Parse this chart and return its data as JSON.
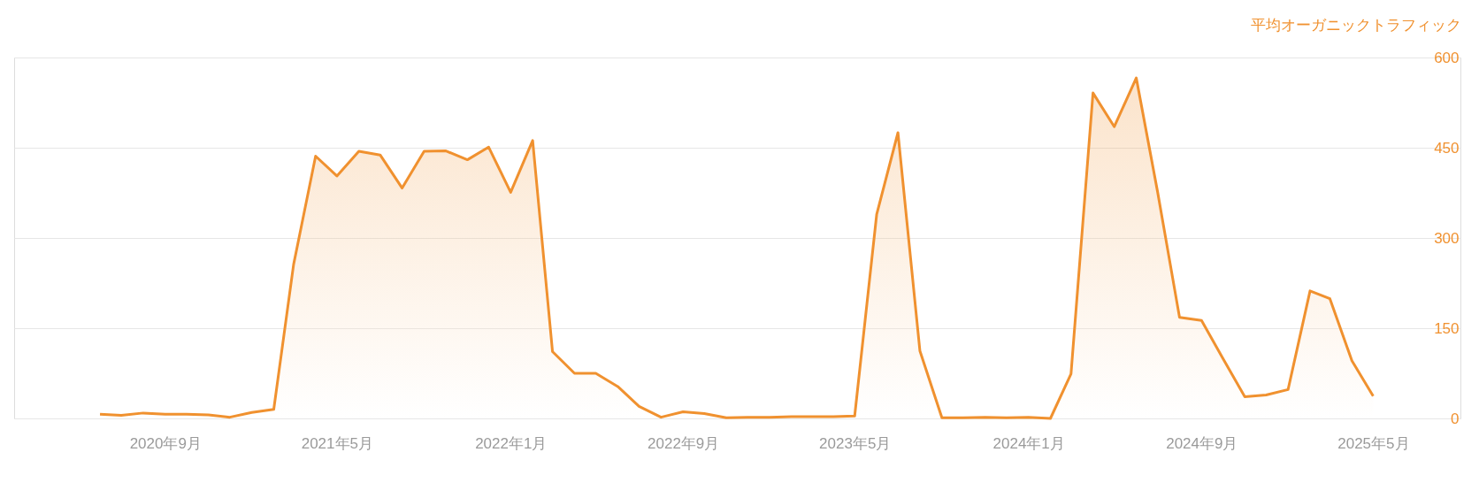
{
  "chart_data": {
    "type": "area",
    "ylabel": "平均オーガニックトラフィック",
    "x": [
      "2020-06",
      "2020-07",
      "2020-08",
      "2020-09",
      "2020-10",
      "2020-11",
      "2020-12",
      "2021-01",
      "2021-02",
      "2021-03",
      "2021-04",
      "2021-05",
      "2021-06",
      "2021-07",
      "2021-08",
      "2021-09",
      "2021-10",
      "2021-11",
      "2021-12",
      "2022-01",
      "2022-02",
      "2022-03",
      "2022-04",
      "2022-05",
      "2022-06",
      "2022-07",
      "2022-08",
      "2022-09",
      "2022-10",
      "2022-11",
      "2022-12",
      "2023-01",
      "2023-02",
      "2023-03",
      "2023-04",
      "2023-05",
      "2023-06",
      "2023-07",
      "2023-08",
      "2023-09",
      "2023-10",
      "2023-11",
      "2023-12",
      "2024-01",
      "2024-02",
      "2024-03",
      "2024-04",
      "2024-05",
      "2024-06",
      "2024-07",
      "2024-08",
      "2024-09",
      "2024-10",
      "2024-11",
      "2024-12",
      "2025-01",
      "2025-02",
      "2025-03",
      "2025-04",
      "2025-05"
    ],
    "series": [
      {
        "color": "#f0912f",
        "values": [
          7,
          5,
          9,
          7,
          7,
          6,
          2,
          10,
          15,
          256,
          436,
          403,
          444,
          438,
          383,
          444,
          445,
          430,
          451,
          376,
          462,
          111,
          75,
          75,
          53,
          20,
          2,
          11,
          8,
          1,
          2,
          2,
          3,
          3,
          3,
          4,
          339,
          475,
          112,
          1,
          1,
          2,
          1,
          2,
          0,
          74,
          541,
          485,
          566,
          377,
          168,
          163,
          100,
          36,
          39,
          48,
          212,
          199,
          96,
          37
        ]
      }
    ],
    "xlim": [
      "2020-02",
      "2025-09"
    ],
    "xticks": [
      {
        "value": "2020-09",
        "label": "2020年9月"
      },
      {
        "value": "2021-05",
        "label": "2021年5月"
      },
      {
        "value": "2022-01",
        "label": "2022年1月"
      },
      {
        "value": "2022-09",
        "label": "2022年9月"
      },
      {
        "value": "2023-05",
        "label": "2023年5月"
      },
      {
        "value": "2024-01",
        "label": "2024年1月"
      },
      {
        "value": "2024-09",
        "label": "2024年9月"
      },
      {
        "value": "2025-05",
        "label": "2025年5月"
      }
    ],
    "ylim": [
      0,
      600
    ],
    "yticks": [
      0,
      150,
      300,
      450,
      600
    ],
    "grid": "y",
    "marker": "none",
    "line_style": "solid"
  }
}
